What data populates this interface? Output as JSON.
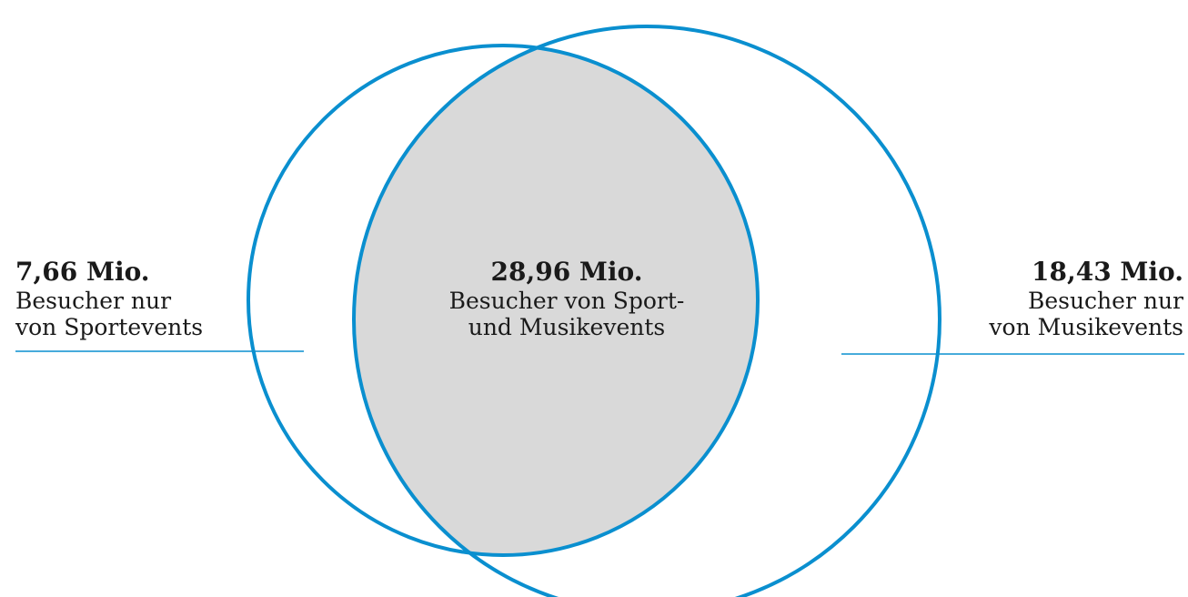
{
  "diagram": {
    "type": "venn",
    "circle_color": "#0a8fcf",
    "overlap_color": "#d9d9d9",
    "leader_line_color": "#0a8fcf",
    "regions": {
      "sport_only": {
        "value": "7,66 Mio.",
        "line1": "Besucher nur",
        "line2": "von Sportevents"
      },
      "overlap": {
        "value": "28,96 Mio.",
        "line1": "Besucher von Sport-",
        "line2": "und Musikevents"
      },
      "music_only": {
        "value": "18,43 Mio.",
        "line1": "Besucher nur",
        "line2": "von Musikevents"
      }
    }
  }
}
